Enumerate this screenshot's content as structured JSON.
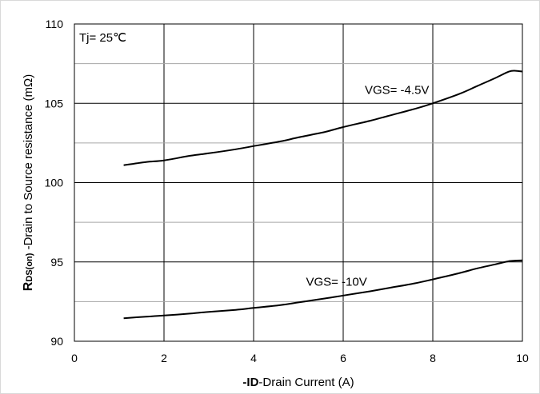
{
  "chart_data": {
    "type": "line",
    "title": "",
    "xlabel_bold": "-ID",
    "xlabel_rest": "-Drain Current  (A)",
    "ylabel_bold": "R",
    "ylabel_sub": "DS(on)",
    "ylabel_rest": " -Drain to Source resistance (mΩ)",
    "annotation": "Tj= 25℃",
    "xlim": [
      0,
      10
    ],
    "ylim": [
      90,
      110
    ],
    "x_ticks": [
      0,
      2,
      4,
      6,
      8,
      10
    ],
    "x_tick_labels": [
      "0",
      "2",
      "4",
      "6",
      "8",
      "10"
    ],
    "y_ticks": [
      90,
      95,
      100,
      105,
      110
    ],
    "y_tick_labels": [
      "90",
      "95",
      "100",
      "105",
      "110"
    ],
    "y_minor_gridlines": [
      92.5,
      97.5,
      102.5,
      107.5
    ],
    "grid": true,
    "line_color": "#000000",
    "series": [
      {
        "label": "VGS= -4.5V",
        "x": [
          1.1,
          1.6,
          2.0,
          2.6,
          3.0,
          3.6,
          4.0,
          4.6,
          5.0,
          5.6,
          6.0,
          6.6,
          7.0,
          7.6,
          8.0,
          8.6,
          9.0,
          9.4,
          9.7,
          9.85,
          10.0
        ],
        "y": [
          101.1,
          101.3,
          101.4,
          101.7,
          101.85,
          102.1,
          102.3,
          102.6,
          102.85,
          103.2,
          103.5,
          103.9,
          104.2,
          104.65,
          105.0,
          105.6,
          106.1,
          106.6,
          107.0,
          107.05,
          107.0
        ]
      },
      {
        "label": "VGS= -10V",
        "x": [
          1.1,
          1.6,
          2.0,
          2.6,
          3.0,
          3.6,
          4.0,
          4.6,
          5.0,
          5.6,
          6.0,
          6.6,
          7.0,
          7.6,
          8.0,
          8.6,
          9.0,
          9.4,
          9.7,
          10.0
        ],
        "y": [
          91.45,
          91.55,
          91.62,
          91.75,
          91.85,
          91.98,
          92.1,
          92.28,
          92.45,
          92.7,
          92.88,
          93.15,
          93.35,
          93.65,
          93.9,
          94.3,
          94.6,
          94.85,
          95.05,
          95.1
        ]
      }
    ]
  }
}
